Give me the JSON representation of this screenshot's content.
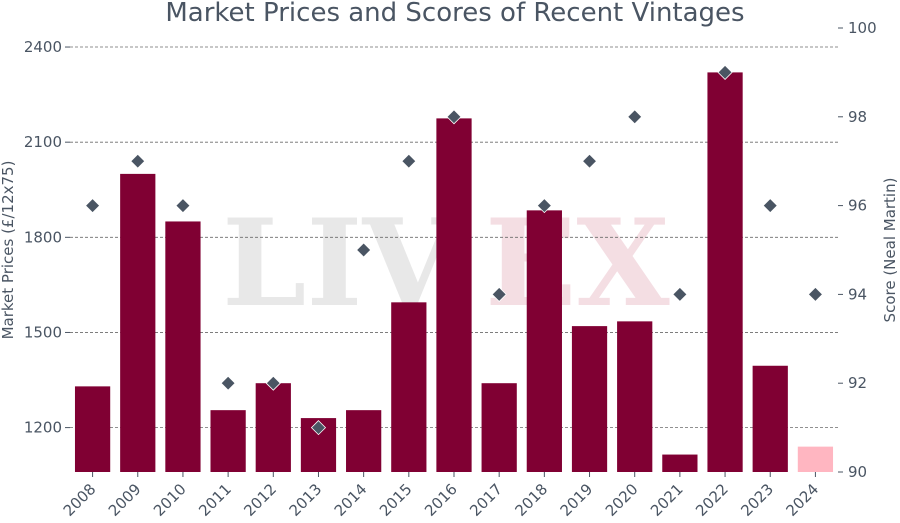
{
  "chart_data": {
    "type": "bar",
    "title": "Market Prices and Scores of Recent Vintages",
    "xlabel": "",
    "ylabel": "Market Prices (£/12x75)",
    "y2label": "Score (Neal Martin)",
    "categories": [
      "2008",
      "2009",
      "2010",
      "2011",
      "2012",
      "2013",
      "2014",
      "2015",
      "2016",
      "2017",
      "2018",
      "2019",
      "2020",
      "2021",
      "2022",
      "2023",
      "2024"
    ],
    "series": [
      {
        "name": "",
        "type": "bar",
        "axis": "left",
        "values": [
          1330,
          2000,
          1850,
          1255,
          1340,
          1230,
          1255,
          1595,
          2175,
          1340,
          1885,
          1520,
          1535,
          1115,
          2320,
          1395,
          1140
        ],
        "colors": [
          "#800033",
          "#800033",
          "#800033",
          "#800033",
          "#800033",
          "#800033",
          "#800033",
          "#800033",
          "#800033",
          "#800033",
          "#800033",
          "#800033",
          "#800033",
          "#800033",
          "#800033",
          "#800033",
          "#ffb6c1"
        ]
      },
      {
        "name": "",
        "type": "scatter",
        "axis": "right",
        "marker": "diamond",
        "values": [
          96,
          97,
          96,
          92,
          92,
          91,
          95,
          97,
          98,
          94,
          96,
          97,
          98,
          94,
          99,
          96,
          94
        ],
        "color": "#4a5563"
      }
    ],
    "ylim": [
      1060,
      2460
    ],
    "y2lim": [
      90,
      100
    ],
    "yticks": [
      1200,
      1500,
      1800,
      2100,
      2400
    ],
    "y2ticks": [
      90,
      92,
      94,
      96,
      98,
      100
    ],
    "grid": true,
    "watermark": [
      "LIV",
      "EX"
    ]
  }
}
